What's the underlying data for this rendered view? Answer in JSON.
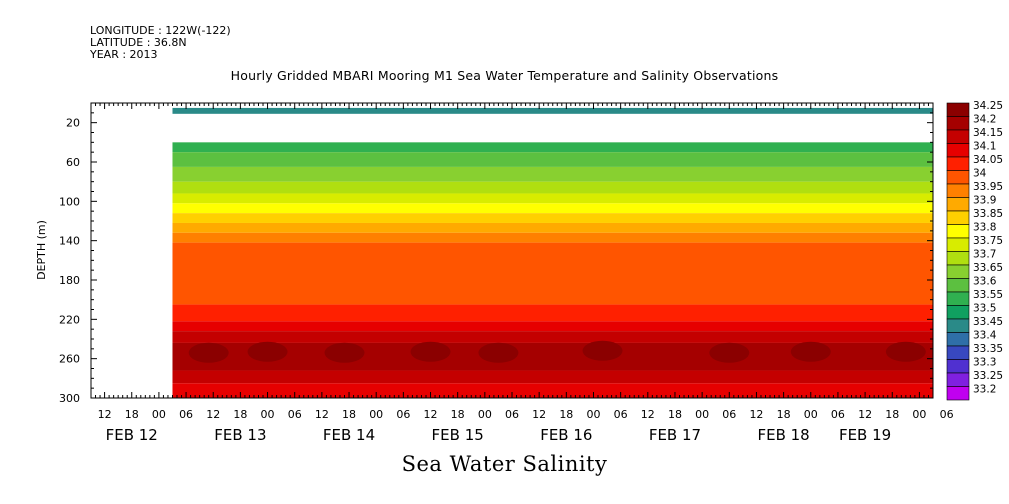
{
  "header": {
    "longitude": "LONGITUDE : 122W(-122)",
    "latitude": "LATITUDE : 36.8N",
    "year": "YEAR : 2013"
  },
  "chart_data": {
    "type": "heatmap",
    "title": "Hourly Gridded MBARI Mooring M1 Sea Water Temperature and Salinity Observations",
    "variable_label": "Sea Water Salinity",
    "ylabel": "DEPTH (m)",
    "yrange": [
      0,
      300
    ],
    "y_inverted": true,
    "y_ticks": [
      20,
      60,
      100,
      140,
      180,
      220,
      260,
      300
    ],
    "x_start_hours": -15,
    "x_end_hours": 171,
    "data_start_hours": 3,
    "x_hour_ticks": [
      {
        "h": -12,
        "label": "12"
      },
      {
        "h": -6,
        "label": "18"
      },
      {
        "h": 0,
        "label": "00"
      },
      {
        "h": 6,
        "label": "06"
      },
      {
        "h": 12,
        "label": "12"
      },
      {
        "h": 18,
        "label": "18"
      },
      {
        "h": 24,
        "label": "00"
      },
      {
        "h": 30,
        "label": "06"
      },
      {
        "h": 36,
        "label": "12"
      },
      {
        "h": 42,
        "label": "18"
      },
      {
        "h": 48,
        "label": "00"
      },
      {
        "h": 54,
        "label": "06"
      },
      {
        "h": 60,
        "label": "12"
      },
      {
        "h": 66,
        "label": "18"
      },
      {
        "h": 72,
        "label": "00"
      },
      {
        "h": 78,
        "label": "06"
      },
      {
        "h": 84,
        "label": "12"
      },
      {
        "h": 90,
        "label": "18"
      },
      {
        "h": 96,
        "label": "00"
      },
      {
        "h": 102,
        "label": "06"
      },
      {
        "h": 108,
        "label": "12"
      },
      {
        "h": 114,
        "label": "18"
      },
      {
        "h": 120,
        "label": "00"
      },
      {
        "h": 126,
        "label": "06"
      },
      {
        "h": 132,
        "label": "12"
      },
      {
        "h": 138,
        "label": "18"
      },
      {
        "h": 144,
        "label": "00"
      },
      {
        "h": 150,
        "label": "06"
      },
      {
        "h": 156,
        "label": "12"
      },
      {
        "h": 162,
        "label": "18"
      },
      {
        "h": 168,
        "label": "00"
      },
      {
        "h": 174,
        "label": "06"
      }
    ],
    "x_date_labels": [
      {
        "h": -6,
        "label": "FEB 12"
      },
      {
        "h": 18,
        "label": "FEB 13"
      },
      {
        "h": 42,
        "label": "FEB 14"
      },
      {
        "h": 66,
        "label": "FEB 15"
      },
      {
        "h": 90,
        "label": "FEB 16"
      },
      {
        "h": 114,
        "label": "FEB 17"
      },
      {
        "h": 138,
        "label": "FEB 18"
      },
      {
        "h": 156,
        "label": "FEB 19"
      }
    ],
    "depth_layers": [
      {
        "top": 0,
        "bottom": 5,
        "value": null
      },
      {
        "top": 5,
        "bottom": 11,
        "value": 33.45
      },
      {
        "top": 11,
        "bottom": 40,
        "value": null
      },
      {
        "top": 40,
        "bottom": 50,
        "value": 33.55
      },
      {
        "top": 50,
        "bottom": 65,
        "value": 33.6
      },
      {
        "top": 65,
        "bottom": 80,
        "value": 33.65
      },
      {
        "top": 80,
        "bottom": 92,
        "value": 33.7
      },
      {
        "top": 92,
        "bottom": 102,
        "value": 33.75
      },
      {
        "top": 102,
        "bottom": 112,
        "value": 33.8
      },
      {
        "top": 112,
        "bottom": 122,
        "value": 33.85
      },
      {
        "top": 122,
        "bottom": 132,
        "value": 33.9
      },
      {
        "top": 132,
        "bottom": 142,
        "value": 33.95
      },
      {
        "top": 142,
        "bottom": 205,
        "value": 34
      },
      {
        "top": 205,
        "bottom": 222,
        "value": 34.05
      },
      {
        "top": 222,
        "bottom": 232,
        "value": 34.1
      },
      {
        "top": 232,
        "bottom": 244,
        "value": 34.15
      },
      {
        "top": 244,
        "bottom": 272,
        "value": 34.2
      },
      {
        "top": 272,
        "bottom": 285,
        "value": 34.15
      },
      {
        "top": 285,
        "bottom": 300,
        "value": 34.1
      }
    ],
    "core_patches": [
      {
        "h": 11,
        "depth": 254,
        "value": 34.25
      },
      {
        "h": 24,
        "depth": 253,
        "value": 34.25
      },
      {
        "h": 41,
        "depth": 254,
        "value": 34.25
      },
      {
        "h": 60,
        "depth": 253,
        "value": 34.25
      },
      {
        "h": 75,
        "depth": 254,
        "value": 34.25
      },
      {
        "h": 98,
        "depth": 252,
        "value": 34.25
      },
      {
        "h": 126,
        "depth": 254,
        "value": 34.25
      },
      {
        "h": 144,
        "depth": 253,
        "value": 34.25
      },
      {
        "h": 165,
        "depth": 253,
        "value": 34.25
      }
    ],
    "legend": {
      "values": [
        "34.25",
        "34.2",
        "34.15",
        "34.1",
        "34.05",
        "34",
        "33.95",
        "33.9",
        "33.85",
        "33.8",
        "33.75",
        "33.7",
        "33.65",
        "33.6",
        "33.55",
        "33.5",
        "33.45",
        "33.4",
        "33.35",
        "33.3",
        "33.25",
        "33.2"
      ],
      "colors": [
        "#8b0000",
        "#a50000",
        "#c40000",
        "#e60000",
        "#ff2000",
        "#ff5500",
        "#ff8000",
        "#ffaa00",
        "#ffd000",
        "#ffff00",
        "#d8ec00",
        "#b0df10",
        "#88d030",
        "#5cc040",
        "#30b050",
        "#10a060",
        "#2a8a88",
        "#2f6fa8",
        "#3848c0",
        "#5030d0",
        "#8020e0",
        "#c000f0"
      ],
      "placement": "right"
    }
  }
}
